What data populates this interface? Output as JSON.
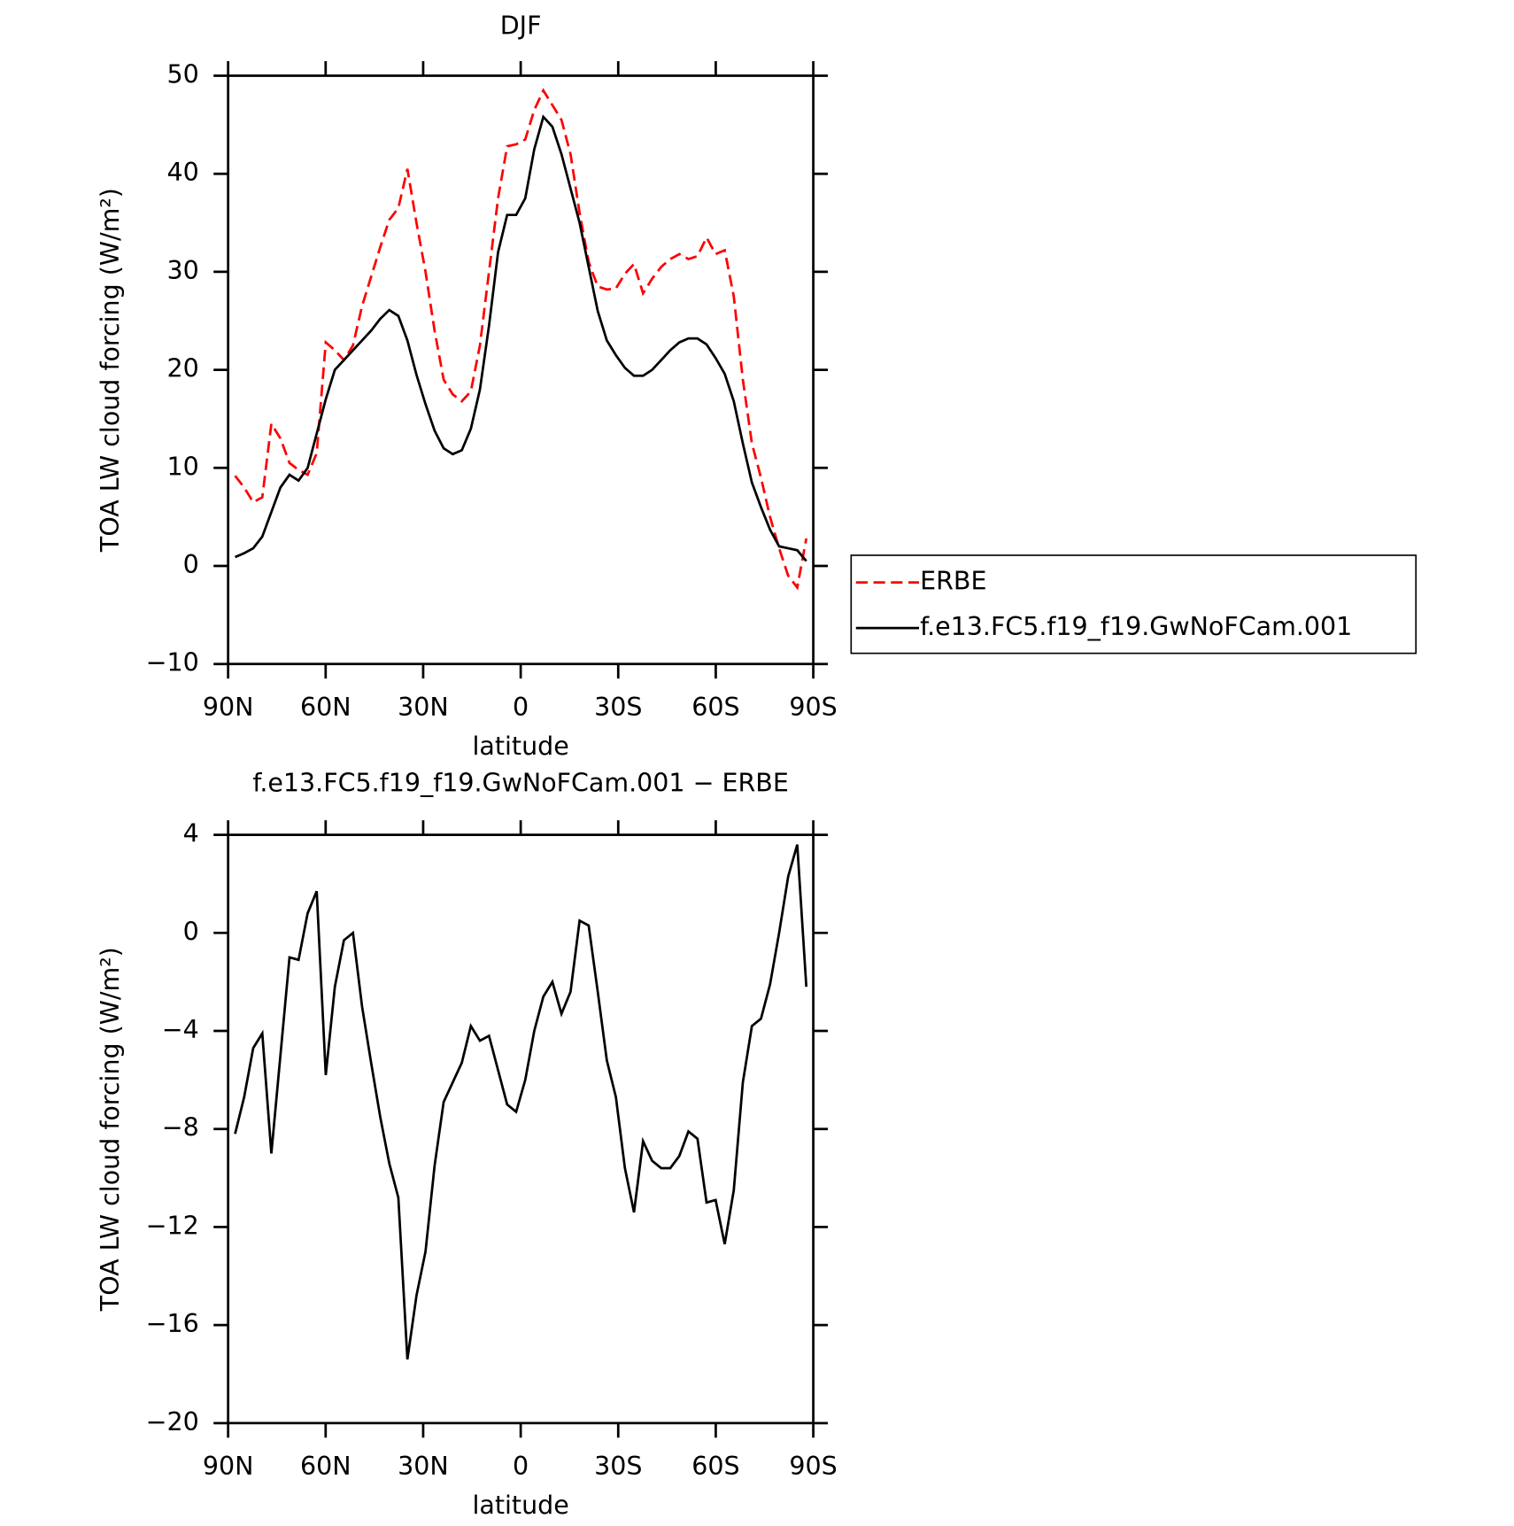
{
  "chart_data": [
    {
      "type": "line",
      "title": "DJF",
      "xlabel": "latitude",
      "ylabel": "TOA LW cloud forcing (W/m²)",
      "x": [
        87.86,
        85.07,
        82.28,
        79.49,
        76.7,
        73.91,
        71.12,
        68.33,
        65.54,
        62.75,
        59.96,
        57.17,
        54.38,
        51.59,
        48.8,
        46.01,
        43.22,
        40.43,
        37.64,
        34.85,
        32.06,
        29.28,
        26.49,
        23.7,
        20.91,
        18.12,
        15.33,
        12.54,
        9.75,
        6.96,
        4.17,
        1.4,
        -1.4,
        -4.17,
        -6.96,
        -9.75,
        -12.54,
        -15.33,
        -18.12,
        -20.91,
        -23.7,
        -26.49,
        -29.28,
        -32.06,
        -34.85,
        -37.64,
        -40.43,
        -43.22,
        -46.01,
        -48.8,
        -51.59,
        -54.38,
        -57.17,
        -59.96,
        -62.75,
        -65.54,
        -68.33,
        -71.12,
        -73.91,
        -76.7,
        -79.49,
        -82.28,
        -85.07,
        -87.86
      ],
      "series": [
        {
          "name": "ERBE",
          "color": "#ff0000",
          "dash": true,
          "values": [
            9.2,
            8,
            6.5,
            7,
            14.5,
            13,
            10.5,
            9.8,
            9.3,
            11.5,
            22.8,
            22,
            21,
            22.5,
            26.5,
            29.5,
            32.5,
            35.3,
            36.5,
            40.5,
            35,
            30,
            24,
            19,
            17.5,
            16.8,
            17.8,
            22.5,
            30,
            37.5,
            42.8,
            43,
            43.5,
            46.5,
            48.5,
            47,
            45.5,
            42,
            36,
            31,
            28.5,
            28.2,
            28.3,
            29.8,
            30.8,
            27.8,
            29.3,
            30.5,
            31.3,
            31.8,
            31.3,
            31.6,
            33.5,
            31.8,
            32.2,
            27.5,
            19,
            12.5,
            9,
            5,
            1.8,
            -1,
            -2.2,
            2.8
          ]
        },
        {
          "name": "f.e13.FC5.f19_f19.GwNoFCam.001",
          "color": "#000000",
          "dash": false,
          "values": [
            0.9,
            1.3,
            1.8,
            3,
            5.5,
            8,
            9.3,
            8.7,
            10,
            13.5,
            17,
            20,
            21,
            22,
            23,
            24,
            25.2,
            26.1,
            25.5,
            23,
            19.5,
            16.5,
            13.8,
            12,
            11.4,
            11.8,
            14,
            18,
            24.5,
            32,
            35.8,
            35.8,
            37.5,
            42.5,
            45.8,
            44.8,
            42,
            38.5,
            35,
            30.5,
            26,
            23,
            21.5,
            20.2,
            19.4,
            19.4,
            20,
            21,
            22,
            22.8,
            23.2,
            23.2,
            22.6,
            21.2,
            19.6,
            16.8,
            12.5,
            8.5,
            6,
            3.7,
            2,
            1.8,
            1.6,
            0.5
          ]
        }
      ],
      "xlim": [
        90,
        -90
      ],
      "xticks": [
        {
          "value": 90,
          "label": "90N"
        },
        {
          "value": 60,
          "label": "60N"
        },
        {
          "value": 30,
          "label": "30N"
        },
        0,
        {
          "value": -30,
          "label": "30S"
        },
        {
          "value": -60,
          "label": "60S"
        },
        {
          "value": -90,
          "label": "90S"
        }
      ],
      "ylim": [
        -10,
        50
      ],
      "yticks": [
        {
          "value": -10,
          "label": "−10"
        },
        0,
        10,
        20,
        30,
        40,
        50
      ],
      "legend": "right"
    },
    {
      "type": "line",
      "title": "f.e13.FC5.f19_f19.GwNoFCam.001 − ERBE",
      "xlabel": "latitude",
      "ylabel": "TOA LW cloud forcing (W/m²)",
      "x": [
        87.86,
        85.07,
        82.28,
        79.49,
        76.7,
        73.91,
        71.12,
        68.33,
        65.54,
        62.75,
        59.96,
        57.17,
        54.38,
        51.59,
        48.8,
        46.01,
        43.22,
        40.43,
        37.64,
        34.85,
        32.06,
        29.28,
        26.49,
        23.7,
        20.91,
        18.12,
        15.33,
        12.54,
        9.75,
        6.96,
        4.17,
        1.4,
        -1.4,
        -4.17,
        -6.96,
        -9.75,
        -12.54,
        -15.33,
        -18.12,
        -20.91,
        -23.7,
        -26.49,
        -29.28,
        -32.06,
        -34.85,
        -37.64,
        -40.43,
        -43.22,
        -46.01,
        -48.8,
        -51.59,
        -54.38,
        -57.17,
        -59.96,
        -62.75,
        -65.54,
        -68.33,
        -71.12,
        -73.91,
        -76.7,
        -79.49,
        -82.28,
        -85.07,
        -87.86
      ],
      "color": "#000000",
      "values": [
        -8.2,
        -6.7,
        -4.7,
        -4.1,
        -9,
        -5,
        -1,
        -1.1,
        0.8,
        1.7,
        -5.8,
        -2.2,
        -0.3,
        0,
        -3,
        -5.3,
        -7.5,
        -9.4,
        -10.8,
        -17.4,
        -14.8,
        -13,
        -9.5,
        -6.9,
        -6.1,
        -5.3,
        -3.8,
        -4.4,
        -4.2,
        -5.6,
        -7,
        -7.3,
        -6,
        -4,
        -2.6,
        -2,
        -3.3,
        -2.4,
        0.5,
        0.3,
        -2.4,
        -5.2,
        -6.7,
        -9.6,
        -11.4,
        -8.5,
        -9.3,
        -9.6,
        -9.6,
        -9.1,
        -8.1,
        -8.4,
        -11,
        -10.9,
        -12.7,
        -10.5,
        -6.1,
        -3.8,
        -3.5,
        -2.1,
        0,
        2.3,
        3.6,
        -2.2
      ],
      "xlim": [
        90,
        -90
      ],
      "xticks": [
        {
          "value": 90,
          "label": "90N"
        },
        {
          "value": 60,
          "label": "60N"
        },
        {
          "value": 30,
          "label": "30N"
        },
        0,
        {
          "value": -30,
          "label": "30S"
        },
        {
          "value": -60,
          "label": "60S"
        },
        {
          "value": -90,
          "label": "90S"
        }
      ],
      "ylim": [
        -20,
        4
      ],
      "yticks": [
        {
          "value": -20,
          "label": "−20"
        },
        {
          "value": -16,
          "label": "−16"
        },
        {
          "value": -12,
          "label": "−12"
        },
        {
          "value": -8,
          "label": "−8"
        },
        {
          "value": -4,
          "label": "−4"
        },
        0,
        4
      ]
    }
  ]
}
